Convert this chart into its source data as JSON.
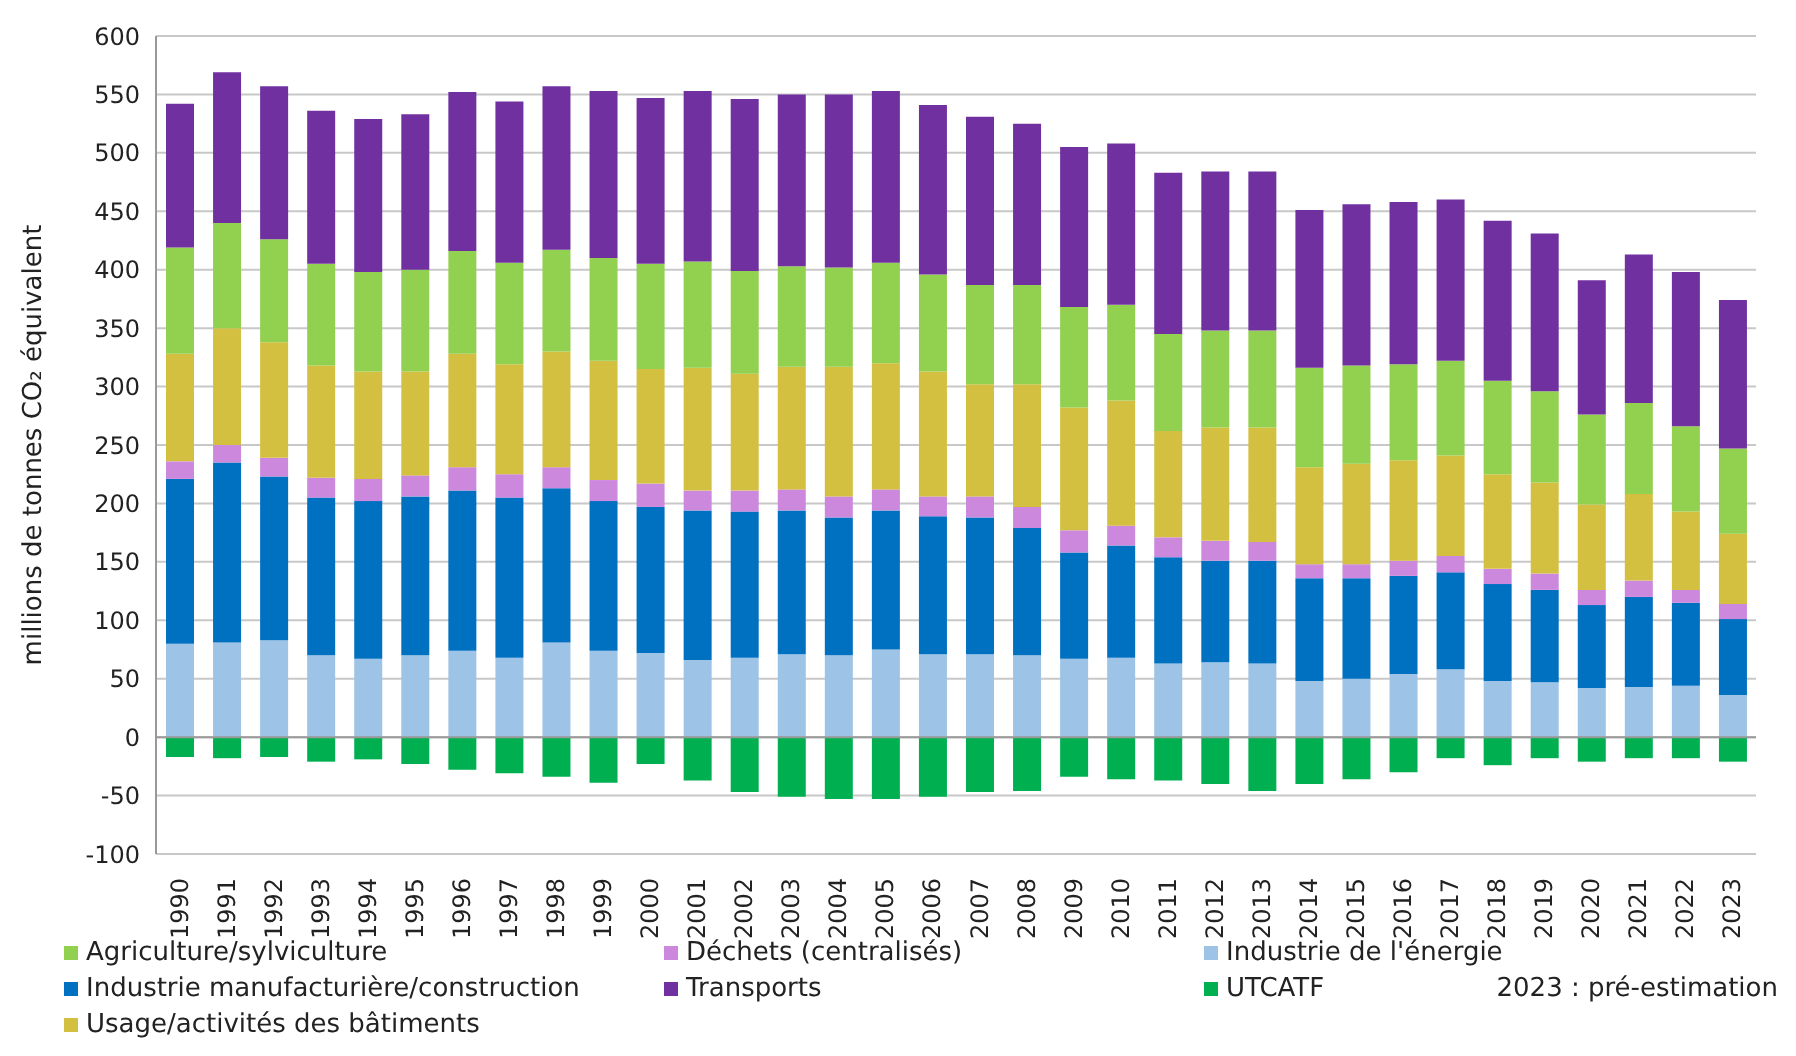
{
  "chart_data": {
    "type": "bar",
    "stacked": true,
    "ylabel": "millions de tonnes CO₂ équivalent",
    "categories": [
      "1990",
      "1991",
      "1992",
      "1993",
      "1994",
      "1995",
      "1996",
      "1997",
      "1998",
      "1999",
      "2000",
      "2001",
      "2002",
      "2003",
      "2004",
      "2005",
      "2006",
      "2007",
      "2008",
      "2009",
      "2010",
      "2011",
      "2012",
      "2013",
      "2014",
      "2015",
      "2016",
      "2017",
      "2018",
      "2019",
      "2020",
      "2021",
      "2022",
      "2023"
    ],
    "series": [
      {
        "name": "Industrie de l'énergie",
        "color": "#9dc3e6",
        "values": [
          80,
          81,
          83,
          70,
          67,
          70,
          74,
          68,
          81,
          74,
          72,
          66,
          68,
          71,
          70,
          75,
          71,
          71,
          70,
          67,
          68,
          63,
          64,
          63,
          48,
          50,
          54,
          58,
          48,
          47,
          42,
          43,
          44,
          36
        ]
      },
      {
        "name": "Industrie manufacturière/construction",
        "color": "#0070c0",
        "values": [
          141,
          154,
          140,
          135,
          135,
          136,
          137,
          137,
          132,
          128,
          125,
          128,
          125,
          123,
          118,
          119,
          118,
          117,
          109,
          91,
          96,
          91,
          87,
          88,
          88,
          86,
          84,
          83,
          83,
          79,
          71,
          77,
          71,
          65
        ]
      },
      {
        "name": "Déchets (centralisés)",
        "color": "#cc88dd",
        "values": [
          15,
          15,
          16,
          17,
          19,
          18,
          20,
          20,
          18,
          18,
          20,
          17,
          18,
          18,
          18,
          18,
          17,
          18,
          18,
          19,
          17,
          17,
          17,
          16,
          12,
          12,
          13,
          14,
          13,
          14,
          13,
          14,
          11,
          13
        ]
      },
      {
        "name": "Usage/activités des bâtiments",
        "color": "#d4c040",
        "values": [
          92,
          100,
          99,
          96,
          92,
          89,
          97,
          94,
          99,
          102,
          98,
          105,
          100,
          105,
          111,
          108,
          107,
          96,
          105,
          105,
          107,
          91,
          97,
          98,
          83,
          86,
          86,
          86,
          81,
          78,
          73,
          74,
          67,
          60
        ]
      },
      {
        "name": "Agriculture/sylviculture",
        "color": "#92d050",
        "values": [
          91,
          90,
          88,
          87,
          85,
          87,
          88,
          87,
          87,
          88,
          90,
          91,
          88,
          86,
          85,
          86,
          83,
          85,
          85,
          86,
          82,
          83,
          83,
          83,
          85,
          84,
          82,
          81,
          80,
          78,
          77,
          78,
          73,
          73
        ]
      },
      {
        "name": "Transports",
        "color": "#7030a0",
        "values": [
          123,
          129,
          131,
          131,
          131,
          133,
          136,
          138,
          140,
          143,
          142,
          146,
          147,
          147,
          148,
          147,
          145,
          144,
          138,
          137,
          138,
          138,
          136,
          136,
          135,
          138,
          139,
          138,
          137,
          135,
          115,
          127,
          132,
          127
        ]
      },
      {
        "name": "UTCATF",
        "color": "#00b050",
        "values": [
          -17,
          -18,
          -17,
          -21,
          -19,
          -23,
          -28,
          -31,
          -34,
          -39,
          -23,
          -37,
          -47,
          -51,
          -53,
          -53,
          -51,
          -47,
          -46,
          -34,
          -36,
          -37,
          -40,
          -46,
          -40,
          -36,
          -30,
          -18,
          -24,
          -18,
          -21,
          -18,
          -18,
          -21
        ]
      }
    ],
    "ylim": [
      -100,
      600
    ],
    "yticks": [
      -100,
      -50,
      0,
      50,
      100,
      150,
      200,
      250,
      300,
      350,
      400,
      450,
      500,
      550,
      600
    ],
    "grid": "y",
    "legend": "bottom",
    "annotations": [
      "2023 : pré-estimation"
    ]
  }
}
